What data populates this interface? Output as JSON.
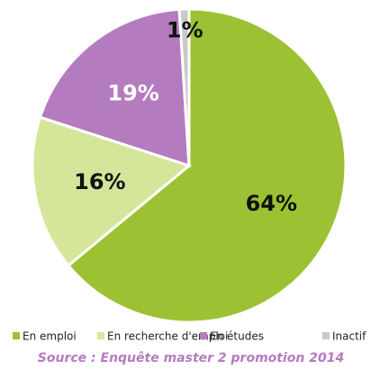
{
  "chart_data": {
    "type": "pie",
    "categories": [
      "En emploi",
      "En recherche d'emploi",
      "En études",
      "Inactif"
    ],
    "values": [
      64,
      16,
      19,
      1
    ],
    "value_labels": [
      "64%",
      "16%",
      "19%",
      "1%"
    ],
    "colors": [
      "#9cc132",
      "#d5e69b",
      "#b57bbf",
      "#c9c9c9"
    ],
    "source": "Source : Enquête master 2 promotion 2014"
  }
}
